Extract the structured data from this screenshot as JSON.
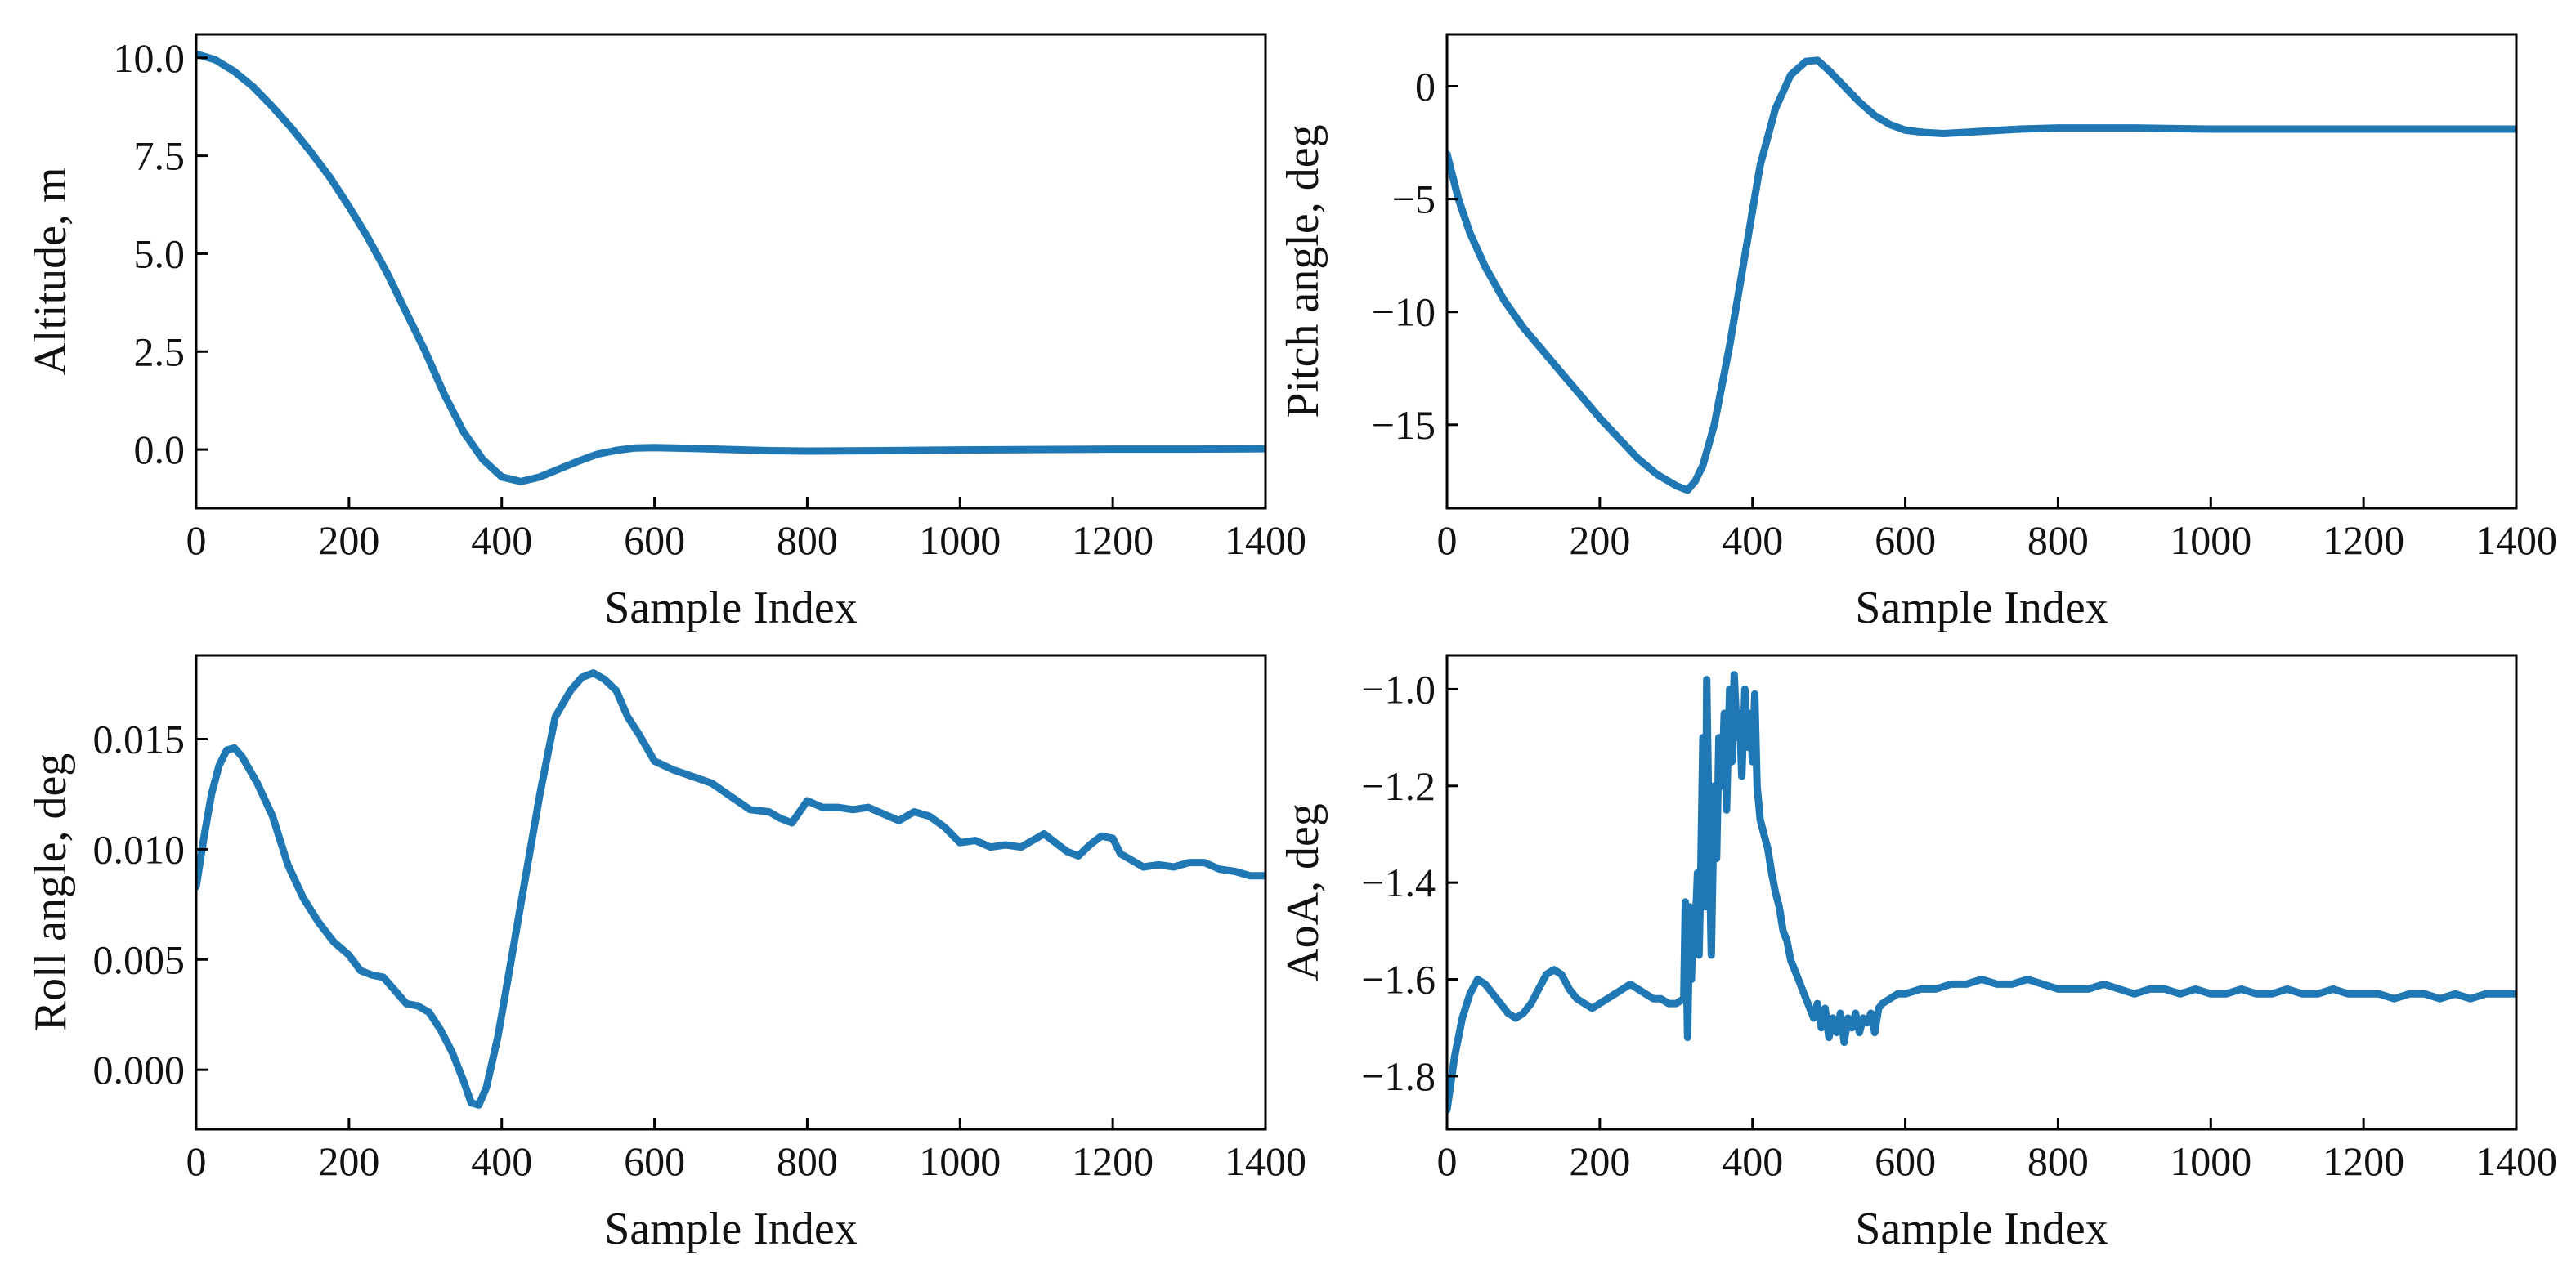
{
  "chart_data": [
    {
      "id": "altitude",
      "type": "line",
      "xlabel": "Sample Index",
      "ylabel": "Altitude, m",
      "xlim": [
        0,
        1400
      ],
      "ylim": [
        -1.5,
        10.6
      ],
      "xticks": [
        0,
        200,
        400,
        600,
        800,
        1000,
        1200,
        1400
      ],
      "xtick_labels": [
        "0",
        "200",
        "400",
        "600",
        "800",
        "1000",
        "1200",
        "1400"
      ],
      "yticks": [
        0.0,
        2.5,
        5.0,
        7.5,
        10.0
      ],
      "ytick_labels": [
        "0.0",
        "2.5",
        "5.0",
        "7.5",
        "10.0"
      ],
      "series": [
        {
          "name": "Altitude",
          "color": "#1f77b4",
          "x": [
            0,
            25,
            50,
            75,
            100,
            125,
            150,
            175,
            200,
            225,
            250,
            275,
            300,
            325,
            350,
            375,
            400,
            425,
            450,
            475,
            500,
            525,
            550,
            575,
            600,
            650,
            700,
            750,
            800,
            900,
            1000,
            1100,
            1200,
            1300,
            1400
          ],
          "y": [
            10.1,
            9.95,
            9.65,
            9.25,
            8.75,
            8.2,
            7.6,
            6.95,
            6.2,
            5.4,
            4.5,
            3.5,
            2.5,
            1.4,
            0.45,
            -0.25,
            -0.7,
            -0.82,
            -0.7,
            -0.5,
            -0.3,
            -0.12,
            -0.02,
            0.04,
            0.05,
            0.03,
            0.0,
            -0.03,
            -0.04,
            -0.03,
            -0.01,
            0.0,
            0.01,
            0.01,
            0.02
          ]
        }
      ]
    },
    {
      "id": "pitch",
      "type": "line",
      "xlabel": "Sample Index",
      "ylabel": "Pitch angle, deg",
      "xlim": [
        0,
        1400
      ],
      "ylim": [
        -18.7,
        2.3
      ],
      "xticks": [
        0,
        200,
        400,
        600,
        800,
        1000,
        1200,
        1400
      ],
      "xtick_labels": [
        "0",
        "200",
        "400",
        "600",
        "800",
        "1000",
        "1200",
        "1400"
      ],
      "yticks": [
        -15,
        -10,
        -5,
        0
      ],
      "ytick_labels": [
        "−15",
        "−10",
        "−5",
        "0"
      ],
      "series": [
        {
          "name": "Pitch angle",
          "color": "#1f77b4",
          "x": [
            0,
            15,
            30,
            50,
            75,
            100,
            125,
            150,
            175,
            200,
            225,
            250,
            275,
            300,
            315,
            325,
            335,
            350,
            370,
            390,
            410,
            430,
            450,
            470,
            485,
            500,
            520,
            540,
            560,
            580,
            600,
            625,
            650,
            700,
            750,
            800,
            900,
            1000,
            1100,
            1200,
            1300,
            1400
          ],
          "y": [
            -3.0,
            -5.0,
            -6.5,
            -8.0,
            -9.5,
            -10.7,
            -11.7,
            -12.7,
            -13.7,
            -14.7,
            -15.6,
            -16.5,
            -17.2,
            -17.7,
            -17.9,
            -17.5,
            -16.8,
            -15.0,
            -11.5,
            -7.5,
            -3.5,
            -1.0,
            0.5,
            1.1,
            1.15,
            0.7,
            0.0,
            -0.7,
            -1.3,
            -1.7,
            -1.95,
            -2.05,
            -2.1,
            -2.0,
            -1.9,
            -1.85,
            -1.85,
            -1.9,
            -1.9,
            -1.9,
            -1.9,
            -1.9
          ]
        }
      ]
    },
    {
      "id": "roll",
      "type": "line",
      "xlabel": "Sample Index",
      "ylabel": "Roll angle, deg",
      "xlim": [
        0,
        1400
      ],
      "ylim": [
        -0.0027,
        0.0188
      ],
      "xticks": [
        0,
        200,
        400,
        600,
        800,
        1000,
        1200,
        1400
      ],
      "xtick_labels": [
        "0",
        "200",
        "400",
        "600",
        "800",
        "1000",
        "1200",
        "1400"
      ],
      "yticks": [
        0.0,
        0.005,
        0.01,
        0.015
      ],
      "ytick_labels": [
        "0.000",
        "0.005",
        "0.010",
        "0.015"
      ],
      "series": [
        {
          "name": "Roll angle",
          "color": "#1f77b4",
          "x": [
            0,
            10,
            20,
            30,
            40,
            50,
            60,
            80,
            100,
            120,
            140,
            160,
            180,
            200,
            215,
            230,
            245,
            260,
            275,
            290,
            305,
            320,
            335,
            350,
            360,
            370,
            380,
            395,
            410,
            430,
            450,
            470,
            490,
            505,
            520,
            535,
            550,
            565,
            580,
            600,
            625,
            650,
            675,
            700,
            725,
            750,
            765,
            780,
            790,
            800,
            820,
            840,
            860,
            880,
            900,
            920,
            940,
            960,
            980,
            1000,
            1020,
            1040,
            1060,
            1080,
            1100,
            1110,
            1125,
            1140,
            1155,
            1170,
            1185,
            1200,
            1210,
            1225,
            1240,
            1260,
            1280,
            1300,
            1320,
            1340,
            1360,
            1380,
            1400
          ],
          "y": [
            0.0083,
            0.0105,
            0.0125,
            0.0138,
            0.0145,
            0.0146,
            0.0142,
            0.013,
            0.0115,
            0.0093,
            0.0078,
            0.0067,
            0.0058,
            0.0052,
            0.0045,
            0.0043,
            0.0042,
            0.0036,
            0.003,
            0.0029,
            0.0026,
            0.0018,
            0.0008,
            -0.0005,
            -0.0015,
            -0.0016,
            -0.0008,
            0.0015,
            0.0045,
            0.0085,
            0.0125,
            0.016,
            0.0172,
            0.0178,
            0.018,
            0.0177,
            0.0172,
            0.016,
            0.0152,
            0.014,
            0.0136,
            0.0133,
            0.013,
            0.0124,
            0.0118,
            0.0117,
            0.0114,
            0.0112,
            0.0117,
            0.0122,
            0.0119,
            0.0119,
            0.0118,
            0.0119,
            0.0116,
            0.0113,
            0.0117,
            0.0115,
            0.011,
            0.0103,
            0.0104,
            0.0101,
            0.0102,
            0.0101,
            0.0105,
            0.0107,
            0.0103,
            0.0099,
            0.0097,
            0.0102,
            0.0106,
            0.0105,
            0.0098,
            0.0095,
            0.0092,
            0.0093,
            0.0092,
            0.0094,
            0.0094,
            0.0091,
            0.009,
            0.0088,
            0.0088
          ]
        }
      ]
    },
    {
      "id": "aoa",
      "type": "line",
      "xlabel": "Sample Index",
      "ylabel": "AoA, deg",
      "xlim": [
        0,
        1400
      ],
      "ylim": [
        -1.91,
        -0.93
      ],
      "xticks": [
        0,
        200,
        400,
        600,
        800,
        1000,
        1200,
        1400
      ],
      "xtick_labels": [
        "0",
        "200",
        "400",
        "600",
        "800",
        "1000",
        "1200",
        "1400"
      ],
      "yticks": [
        -1.8,
        -1.6,
        -1.4,
        -1.2,
        -1.0
      ],
      "ytick_labels": [
        "−1.8",
        "−1.6",
        "−1.4",
        "−1.2",
        "−1.0"
      ],
      "series": [
        {
          "name": "AoA",
          "color": "#1f77b4",
          "x": [
            0,
            10,
            20,
            30,
            40,
            50,
            60,
            70,
            80,
            90,
            100,
            110,
            120,
            130,
            140,
            150,
            160,
            170,
            180,
            190,
            200,
            210,
            220,
            230,
            240,
            250,
            260,
            270,
            280,
            290,
            300,
            310,
            312,
            315,
            318,
            320,
            322,
            325,
            328,
            330,
            332,
            335,
            338,
            340,
            343,
            346,
            350,
            353,
            356,
            360,
            363,
            366,
            370,
            373,
            376,
            380,
            383,
            386,
            390,
            393,
            396,
            400,
            403,
            406,
            410,
            415,
            420,
            425,
            430,
            435,
            440,
            445,
            450,
            455,
            460,
            465,
            470,
            475,
            480,
            485,
            490,
            495,
            500,
            505,
            510,
            515,
            520,
            525,
            530,
            535,
            540,
            545,
            550,
            555,
            560,
            565,
            570,
            580,
            590,
            600,
            620,
            640,
            660,
            680,
            700,
            720,
            740,
            760,
            780,
            800,
            820,
            840,
            860,
            880,
            900,
            920,
            940,
            960,
            980,
            1000,
            1020,
            1040,
            1060,
            1080,
            1100,
            1120,
            1140,
            1160,
            1180,
            1200,
            1220,
            1240,
            1260,
            1280,
            1300,
            1320,
            1340,
            1360,
            1380,
            1400
          ],
          "y": [
            -1.87,
            -1.76,
            -1.68,
            -1.63,
            -1.6,
            -1.61,
            -1.63,
            -1.65,
            -1.67,
            -1.68,
            -1.67,
            -1.65,
            -1.62,
            -1.59,
            -1.58,
            -1.59,
            -1.62,
            -1.64,
            -1.65,
            -1.66,
            -1.65,
            -1.64,
            -1.63,
            -1.62,
            -1.61,
            -1.62,
            -1.63,
            -1.64,
            -1.64,
            -1.65,
            -1.65,
            -1.64,
            -1.44,
            -1.72,
            -1.45,
            -1.6,
            -1.48,
            -1.5,
            -1.38,
            -1.55,
            -1.4,
            -1.1,
            -1.45,
            -0.98,
            -1.3,
            -1.55,
            -1.2,
            -1.35,
            -1.1,
            -1.2,
            -1.05,
            -1.25,
            -1.0,
            -1.15,
            -0.97,
            -1.1,
            -1.05,
            -1.18,
            -1.0,
            -1.12,
            -1.05,
            -1.15,
            -1.01,
            -1.2,
            -1.27,
            -1.3,
            -1.33,
            -1.38,
            -1.42,
            -1.45,
            -1.5,
            -1.52,
            -1.56,
            -1.58,
            -1.6,
            -1.62,
            -1.64,
            -1.66,
            -1.68,
            -1.65,
            -1.7,
            -1.66,
            -1.72,
            -1.68,
            -1.71,
            -1.67,
            -1.73,
            -1.68,
            -1.7,
            -1.67,
            -1.71,
            -1.68,
            -1.69,
            -1.67,
            -1.71,
            -1.66,
            -1.65,
            -1.64,
            -1.63,
            -1.63,
            -1.62,
            -1.62,
            -1.61,
            -1.61,
            -1.6,
            -1.61,
            -1.61,
            -1.6,
            -1.61,
            -1.62,
            -1.62,
            -1.62,
            -1.61,
            -1.62,
            -1.63,
            -1.62,
            -1.62,
            -1.63,
            -1.62,
            -1.63,
            -1.63,
            -1.62,
            -1.63,
            -1.63,
            -1.62,
            -1.63,
            -1.63,
            -1.62,
            -1.63,
            -1.63,
            -1.63,
            -1.64,
            -1.63,
            -1.63,
            -1.64,
            -1.63,
            -1.64,
            -1.63,
            -1.63,
            -1.63
          ]
        }
      ]
    }
  ]
}
